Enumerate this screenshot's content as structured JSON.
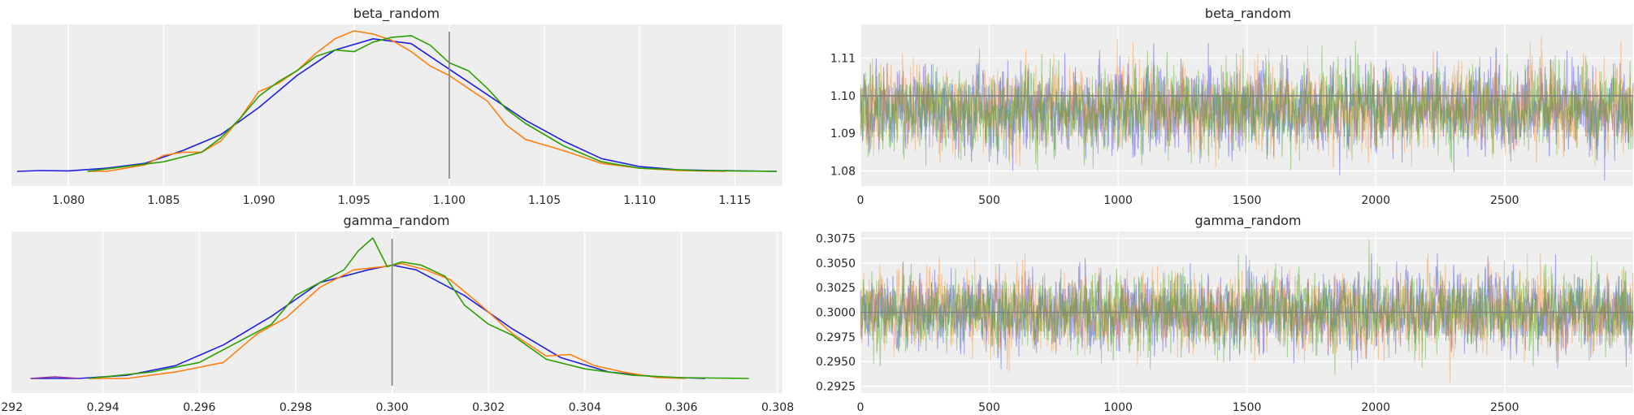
{
  "chart_data": [
    {
      "type": "line",
      "title": "beta_random",
      "subtitle_kind": "posterior density",
      "xlim": [
        1.077,
        1.1175
      ],
      "x_ticks": [
        1.08,
        1.085,
        1.09,
        1.095,
        1.1,
        1.105,
        1.11,
        1.115
      ],
      "x_tick_labels": [
        "1.080",
        "1.085",
        "1.090",
        "1.095",
        "1.100",
        "1.105",
        "1.110",
        "1.115"
      ],
      "y_ticks_shown": false,
      "reference_line": 1.1,
      "series": [
        {
          "color": "#1f1fe0",
          "x": [
            1.0773,
            1.0785,
            1.08,
            1.082,
            1.084,
            1.086,
            1.088,
            1.09,
            1.092,
            1.094,
            1.096,
            1.098,
            1.1,
            1.102,
            1.104,
            1.106,
            1.108,
            1.11,
            1.112,
            1.114,
            1.1172
          ],
          "y": [
            0.0,
            0.005,
            0.003,
            0.02,
            0.05,
            0.13,
            0.23,
            0.4,
            0.6,
            0.76,
            0.83,
            0.8,
            0.64,
            0.48,
            0.32,
            0.19,
            0.08,
            0.03,
            0.01,
            0.005,
            0.0
          ]
        },
        {
          "color": "#ff7f0e",
          "x": [
            1.081,
            1.082,
            1.084,
            1.085,
            1.086,
            1.087,
            1.088,
            1.089,
            1.09,
            1.091,
            1.092,
            1.093,
            1.094,
            1.095,
            1.096,
            1.097,
            1.098,
            1.099,
            1.1,
            1.101,
            1.102,
            1.103,
            1.104,
            1.106,
            1.108,
            1.11,
            1.112,
            1.1145
          ],
          "y": [
            0.0,
            0.0,
            0.04,
            0.1,
            0.12,
            0.12,
            0.19,
            0.33,
            0.5,
            0.55,
            0.63,
            0.74,
            0.83,
            0.88,
            0.86,
            0.82,
            0.75,
            0.66,
            0.6,
            0.52,
            0.44,
            0.29,
            0.2,
            0.13,
            0.05,
            0.02,
            0.005,
            0.0
          ]
        },
        {
          "color": "#2ca000",
          "x": [
            1.081,
            1.083,
            1.085,
            1.087,
            1.088,
            1.089,
            1.09,
            1.091,
            1.092,
            1.093,
            1.094,
            1.095,
            1.0955,
            1.096,
            1.097,
            1.098,
            1.099,
            1.1,
            1.101,
            1.102,
            1.103,
            1.104,
            1.106,
            1.108,
            1.11,
            1.113,
            1.1172
          ],
          "y": [
            0.0,
            0.03,
            0.06,
            0.12,
            0.21,
            0.33,
            0.47,
            0.56,
            0.63,
            0.72,
            0.76,
            0.75,
            0.78,
            0.81,
            0.84,
            0.85,
            0.79,
            0.68,
            0.63,
            0.52,
            0.39,
            0.3,
            0.16,
            0.06,
            0.02,
            0.005,
            0.0
          ]
        }
      ]
    },
    {
      "type": "line",
      "title": "beta_random",
      "subtitle_kind": "trace",
      "xlim": [
        0,
        2999
      ],
      "ylim": [
        1.076,
        1.119
      ],
      "x_ticks": [
        0,
        500,
        1000,
        1500,
        2000,
        2500
      ],
      "x_tick_labels": [
        "0",
        "500",
        "1000",
        "1500",
        "2000",
        "2500"
      ],
      "y_ticks": [
        1.08,
        1.09,
        1.1,
        1.11
      ],
      "y_tick_labels": [
        "1.08",
        "1.09",
        "1.10",
        "1.11"
      ],
      "reference_line": 1.1,
      "n_draws": 3000,
      "series": [
        {
          "color": "#1f1fe0",
          "center": 1.0965,
          "spread": 0.0052,
          "seed": 11,
          "range": [
            1.077,
            1.114
          ]
        },
        {
          "color": "#ff7f0e",
          "center": 1.0965,
          "spread": 0.0052,
          "seed": 23,
          "range": [
            1.081,
            1.116
          ]
        },
        {
          "color": "#2ca000",
          "center": 1.0965,
          "spread": 0.0052,
          "seed": 37,
          "range": [
            1.08,
            1.117
          ]
        }
      ]
    },
    {
      "type": "line",
      "title": "gamma_random",
      "subtitle_kind": "posterior density",
      "xlim": [
        0.2921,
        0.3081
      ],
      "x_ticks": [
        0.292,
        0.294,
        0.296,
        0.298,
        0.3,
        0.302,
        0.304,
        0.306,
        0.308
      ],
      "x_tick_labels": [
        "0.292",
        "0.294",
        "0.296",
        "0.298",
        "0.300",
        "0.302",
        "0.304",
        "0.306",
        "0.308"
      ],
      "y_ticks_shown": false,
      "reference_line": 0.3,
      "series": [
        {
          "color": "#1f1fe0",
          "x": [
            0.2925,
            0.2935,
            0.2945,
            0.2955,
            0.2965,
            0.2975,
            0.2985,
            0.2995,
            0.3,
            0.3005,
            0.3015,
            0.3025,
            0.3035,
            0.3045,
            0.3055,
            0.3065
          ],
          "y": [
            0.0,
            0.0,
            0.02,
            0.08,
            0.21,
            0.39,
            0.6,
            0.68,
            0.71,
            0.68,
            0.52,
            0.31,
            0.13,
            0.04,
            0.01,
            0.0
          ]
        },
        {
          "color": "#9b2f9b",
          "x": [
            0.2925,
            0.293,
            0.2935
          ],
          "y": [
            0.0,
            0.01,
            0.0
          ]
        },
        {
          "color": "#ff7f0e",
          "x": [
            0.2937,
            0.2945,
            0.2955,
            0.2965,
            0.2972,
            0.2978,
            0.2985,
            0.2992,
            0.2998,
            0.3002,
            0.3007,
            0.3012,
            0.3018,
            0.3025,
            0.3032,
            0.3037,
            0.3042,
            0.3048,
            0.3055,
            0.3061
          ],
          "y": [
            0.0,
            0.0,
            0.04,
            0.1,
            0.28,
            0.38,
            0.57,
            0.68,
            0.7,
            0.72,
            0.68,
            0.62,
            0.47,
            0.28,
            0.14,
            0.15,
            0.08,
            0.04,
            0.005,
            0.0
          ]
        },
        {
          "color": "#2ca000",
          "x": [
            0.2937,
            0.295,
            0.296,
            0.297,
            0.2975,
            0.298,
            0.2985,
            0.299,
            0.2993,
            0.2996,
            0.2999,
            0.3002,
            0.3006,
            0.3011,
            0.3015,
            0.302,
            0.3025,
            0.3032,
            0.304,
            0.305,
            0.306,
            0.3074
          ],
          "y": [
            0.0,
            0.04,
            0.1,
            0.26,
            0.34,
            0.52,
            0.6,
            0.68,
            0.8,
            0.88,
            0.7,
            0.73,
            0.71,
            0.64,
            0.46,
            0.34,
            0.27,
            0.12,
            0.06,
            0.02,
            0.005,
            0.0
          ]
        }
      ]
    },
    {
      "type": "line",
      "title": "gamma_random",
      "subtitle_kind": "trace",
      "xlim": [
        0,
        2999
      ],
      "ylim": [
        0.2918,
        0.3082
      ],
      "x_ticks": [
        0,
        500,
        1000,
        1500,
        2000,
        2500
      ],
      "x_tick_labels": [
        "0",
        "500",
        "1000",
        "1500",
        "2000",
        "2500"
      ],
      "y_ticks": [
        0.2925,
        0.295,
        0.2975,
        0.3,
        0.3025,
        0.305,
        0.3075
      ],
      "y_tick_labels": [
        "0.2925",
        "0.2950",
        "0.2975",
        "0.3000",
        "0.3025",
        "0.3050",
        "0.3075"
      ],
      "reference_line": 0.3,
      "n_draws": 3000,
      "series": [
        {
          "color": "#1f1fe0",
          "center": 0.3,
          "spread": 0.0018,
          "seed": 51,
          "range": [
            0.2925,
            0.306
          ]
        },
        {
          "color": "#ff7f0e",
          "center": 0.3,
          "spread": 0.0018,
          "seed": 67,
          "range": [
            0.2925,
            0.306
          ]
        },
        {
          "color": "#2ca000",
          "center": 0.3,
          "spread": 0.0018,
          "seed": 79,
          "range": [
            0.2935,
            0.3074
          ]
        }
      ]
    }
  ]
}
